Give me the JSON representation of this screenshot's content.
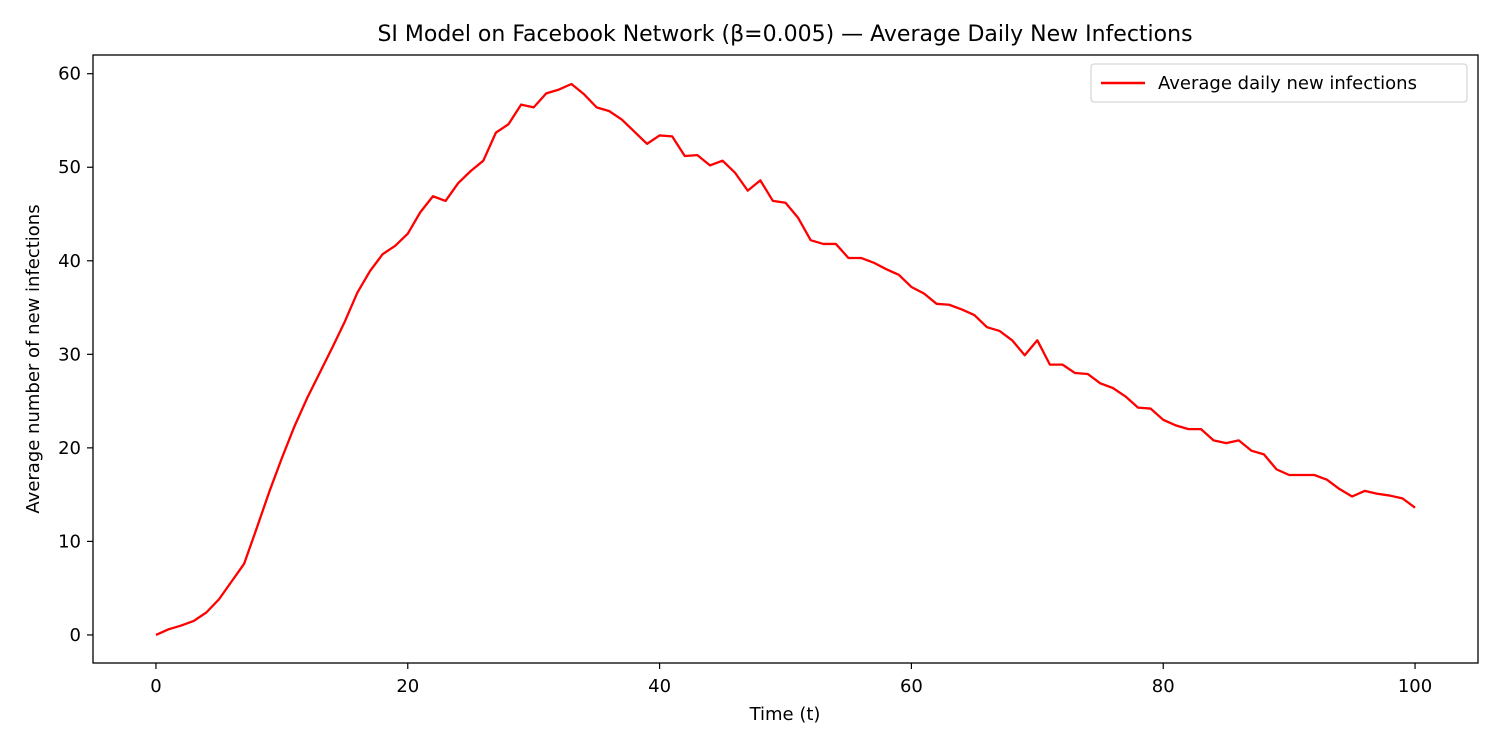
{
  "chart_data": {
    "type": "line",
    "title": "SI Model on Facebook Network (β=0.005) — Average Daily New Infections",
    "xlabel": "Time (t)",
    "ylabel": "Average number of new infections",
    "xlim": [
      -5,
      105
    ],
    "ylim": [
      -3,
      62
    ],
    "xticks": [
      0,
      20,
      40,
      60,
      80,
      100
    ],
    "yticks": [
      0,
      10,
      20,
      30,
      40,
      50,
      60
    ],
    "grid": false,
    "legend_position": "top-right",
    "series": [
      {
        "name": "Average daily new infections",
        "color": "#ff0000",
        "x": [
          0,
          1,
          2,
          3,
          4,
          5,
          6,
          7,
          8,
          9,
          10,
          11,
          12,
          13,
          14,
          15,
          16,
          17,
          18,
          19,
          20,
          21,
          22,
          23,
          24,
          25,
          26,
          27,
          28,
          29,
          30,
          31,
          32,
          33,
          34,
          35,
          36,
          37,
          38,
          39,
          40,
          41,
          42,
          43,
          44,
          45,
          46,
          47,
          48,
          49,
          50,
          51,
          52,
          53,
          54,
          55,
          56,
          57,
          58,
          59,
          60,
          61,
          62,
          63,
          64,
          65,
          66,
          67,
          68,
          69,
          70,
          71,
          72,
          73,
          74,
          75,
          76,
          77,
          78,
          79,
          80,
          81,
          82,
          83,
          84,
          85,
          86,
          87,
          88,
          89,
          90,
          91,
          92,
          93,
          94,
          95,
          96,
          97,
          98,
          99,
          100
        ],
        "y": [
          0.0,
          0.6,
          1.0,
          1.5,
          2.4,
          3.8,
          5.7,
          7.6,
          11.4,
          15.3,
          18.9,
          22.3,
          25.3,
          28.0,
          30.7,
          33.5,
          36.6,
          38.9,
          40.7,
          41.6,
          42.9,
          45.2,
          46.9,
          46.4,
          48.3,
          49.6,
          50.7,
          53.7,
          54.6,
          56.7,
          56.4,
          57.9,
          58.3,
          58.9,
          57.8,
          56.4,
          56.0,
          55.1,
          53.8,
          52.5,
          53.4,
          53.3,
          51.2,
          51.3,
          50.2,
          50.7,
          49.4,
          47.5,
          48.6,
          46.4,
          46.2,
          44.6,
          42.2,
          41.8,
          41.8,
          40.3,
          40.3,
          39.8,
          39.1,
          38.5,
          37.2,
          36.5,
          35.4,
          35.3,
          34.8,
          34.2,
          32.9,
          32.5,
          31.5,
          29.9,
          31.5,
          28.9,
          28.9,
          28.0,
          27.9,
          26.9,
          26.4,
          25.5,
          24.3,
          24.2,
          23.0,
          22.4,
          22.0,
          22.0,
          20.8,
          20.5,
          20.8,
          19.7,
          19.3,
          17.7,
          17.1,
          17.1,
          17.1,
          16.6,
          15.6,
          14.8,
          15.4,
          15.1,
          14.9,
          14.6,
          13.6
        ]
      }
    ]
  }
}
